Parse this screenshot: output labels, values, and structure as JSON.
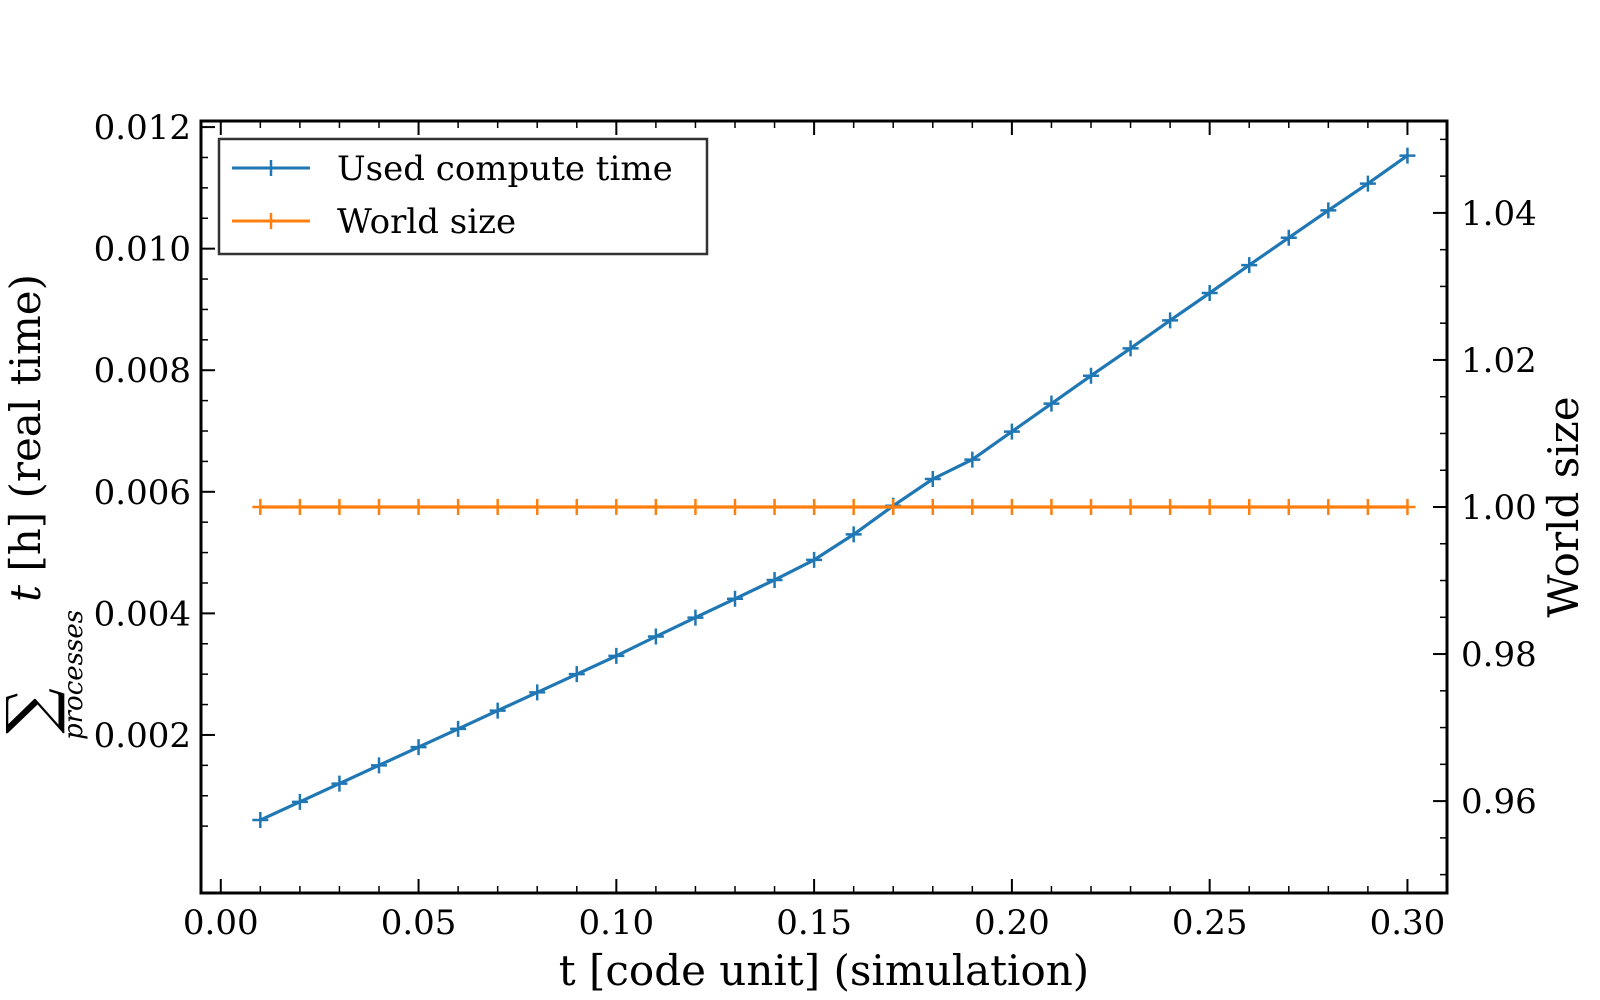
{
  "chart_data": {
    "type": "line",
    "title": "",
    "xlabel": "t [code unit] (simulation)",
    "ylabel_left": {
      "sum_symbol": "∑",
      "subscript": "processes",
      "var": "t",
      "text": " [h] (real time)"
    },
    "ylabel_right": "World size",
    "xlim": [
      -0.005,
      0.31
    ],
    "ylim_left": [
      -0.0006,
      0.0121
    ],
    "ylim_right": [
      0.9475,
      1.0525
    ],
    "xticks": [
      0.0,
      0.05,
      0.1,
      0.15,
      0.2,
      0.25,
      0.3
    ],
    "xtick_labels": [
      "0.00",
      "0.05",
      "0.10",
      "0.15",
      "0.20",
      "0.25",
      "0.30"
    ],
    "yticks_left": [
      0.002,
      0.004,
      0.006,
      0.008,
      0.01,
      0.012
    ],
    "ytick_labels_left": [
      "0.002",
      "0.004",
      "0.006",
      "0.008",
      "0.010",
      "0.012"
    ],
    "yticks_right": [
      0.96,
      0.98,
      1.0,
      1.02,
      1.04
    ],
    "ytick_labels_right": [
      "0.96",
      "0.98",
      "1.00",
      "1.02",
      "1.04"
    ],
    "grid": false,
    "legend_position": "top-left",
    "x": [
      0.01,
      0.02,
      0.03,
      0.04,
      0.05,
      0.06,
      0.07,
      0.08,
      0.09,
      0.1,
      0.11,
      0.12,
      0.13,
      0.14,
      0.15,
      0.16,
      0.17,
      0.18,
      0.19,
      0.2,
      0.21,
      0.22,
      0.23,
      0.24,
      0.25,
      0.26,
      0.27,
      0.28,
      0.29,
      0.3
    ],
    "series": [
      {
        "name": "Used compute time",
        "axis": "left",
        "color": "#1f77b4",
        "marker": "+",
        "values": [
          0.0006,
          0.0009,
          0.0012,
          0.0015,
          0.0018,
          0.0021,
          0.0024,
          0.0027,
          0.003,
          0.0033,
          0.00362,
          0.00393,
          0.00424,
          0.00455,
          0.00488,
          0.0053,
          0.00577,
          0.00621,
          0.00653,
          0.00699,
          0.00745,
          0.00791,
          0.00836,
          0.00882,
          0.00927,
          0.00973,
          0.01018,
          0.01063,
          0.01107,
          0.01153
        ]
      },
      {
        "name": "World size",
        "axis": "right",
        "color": "#ff7f0e",
        "marker": "+",
        "values": [
          1,
          1,
          1,
          1,
          1,
          1,
          1,
          1,
          1,
          1,
          1,
          1,
          1,
          1,
          1,
          1,
          1,
          1,
          1,
          1,
          1,
          1,
          1,
          1,
          1,
          1,
          1,
          1,
          1,
          1
        ]
      }
    ]
  }
}
